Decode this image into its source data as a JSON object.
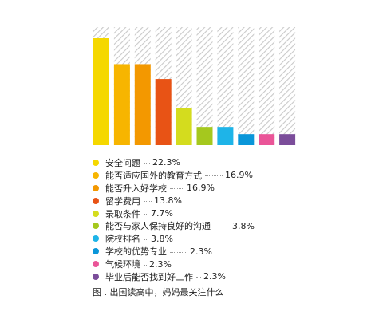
{
  "chart_data": {
    "type": "bar",
    "categories": [
      "安全问题",
      "能否适应国外的教育方式",
      "能否升入好学校",
      "留学费用",
      "录取条件",
      "能否与家人保持良好的沟通",
      "院校排名",
      "学校的优势专业",
      "气候环境",
      "毕业后能否找到好工作"
    ],
    "values": [
      22.3,
      16.9,
      16.9,
      13.8,
      7.7,
      3.8,
      3.8,
      2.3,
      2.3,
      2.3
    ],
    "value_labels": [
      "22.3%",
      "16.9%",
      "16.9%",
      "13.8%",
      "7.7%",
      "3.8%",
      "3.8%",
      "2.3%",
      "2.3%",
      "2.3%"
    ],
    "colors": [
      "#f5d800",
      "#f7b500",
      "#f39800",
      "#e85315",
      "#d4dc1e",
      "#a5c81e",
      "#1eb4e8",
      "#0a96d9",
      "#ea5598",
      "#7b4d9a"
    ],
    "ylim": [
      0,
      25
    ],
    "background_pattern": "diagonal-hatch",
    "legend_position": "bottom-left",
    "caption": "图 . 出国读高中，妈妈最关注什么"
  }
}
